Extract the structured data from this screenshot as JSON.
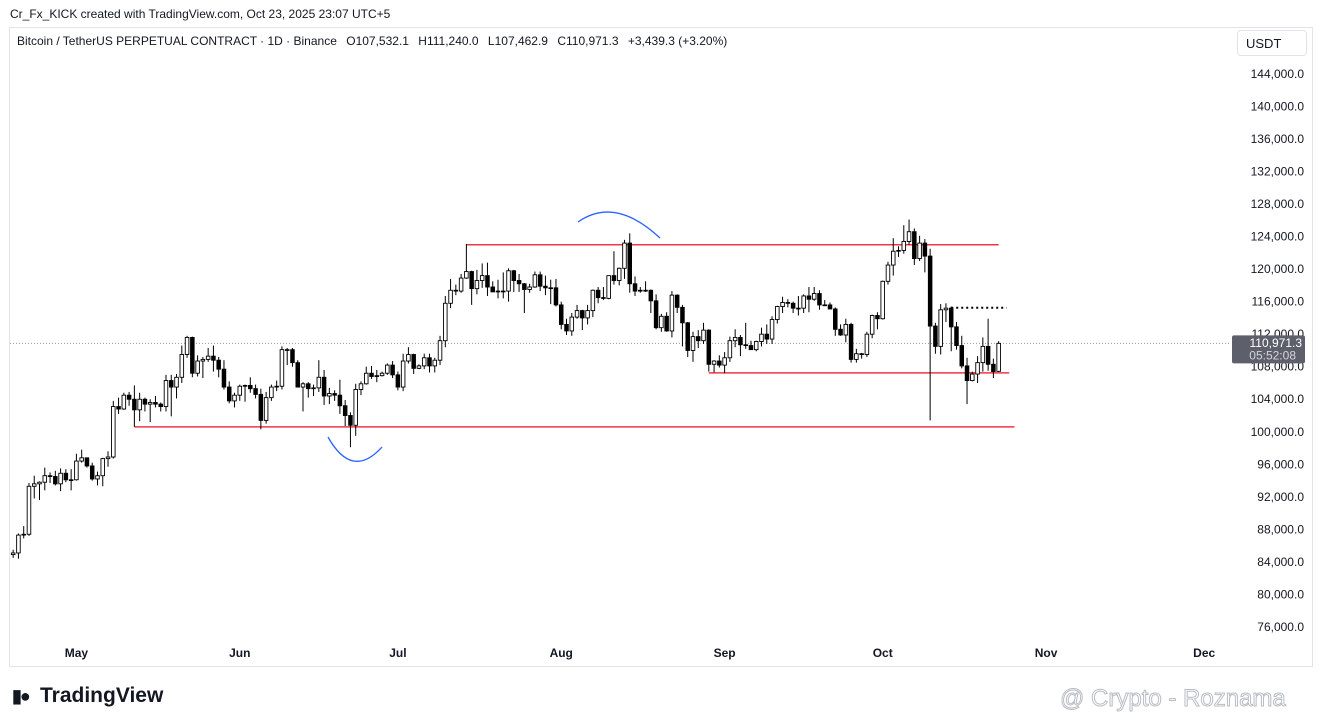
{
  "header": {
    "credit": "Cr_Fx_KICK created with TradingView.com, Oct 23, 2025 23:07 UTC+5",
    "legend": {
      "symbol": "Bitcoin / TetherUS PERPETUAL CONTRACT · 1D · Binance",
      "open": "O107,532.1",
      "high": "H111,240.0",
      "low": "L107,462.9",
      "close": "C110,971.3",
      "change": "+3,439.3 (+3.20%)"
    }
  },
  "currency_button": "USDT",
  "chart_data": {
    "type": "candlestick",
    "up_color": "#ffffff",
    "down_color": "#000000",
    "border_color": "#000000",
    "grid": false,
    "xlim": [
      -0.6,
      230.9
    ],
    "xticks": [
      {
        "value": 12,
        "label": "May"
      },
      {
        "value": 43,
        "label": "Jun"
      },
      {
        "value": 73,
        "label": "Jul"
      },
      {
        "value": 104,
        "label": "Aug"
      },
      {
        "value": 135,
        "label": "Sep"
      },
      {
        "value": 165,
        "label": "Oct"
      },
      {
        "value": 196,
        "label": "Nov"
      },
      {
        "value": 226,
        "label": "Dec"
      }
    ],
    "ylim": [
      74500,
      149500
    ],
    "yticks": [
      {
        "value": 76000,
        "label": "76,000.0"
      },
      {
        "value": 80000,
        "label": "80,000.0"
      },
      {
        "value": 84000,
        "label": "84,000.0"
      },
      {
        "value": 88000,
        "label": "88,000.0"
      },
      {
        "value": 92000,
        "label": "92,000.0"
      },
      {
        "value": 96000,
        "label": "96,000.0"
      },
      {
        "value": 100000,
        "label": "100,000.0"
      },
      {
        "value": 104000,
        "label": "104,000.0"
      },
      {
        "value": 108000,
        "label": "108,000.0"
      },
      {
        "value": 112000,
        "label": "112,000.0"
      },
      {
        "value": 116000,
        "label": "116,000.0"
      },
      {
        "value": 120000,
        "label": "120,000.0"
      },
      {
        "value": 124000,
        "label": "124,000.0"
      },
      {
        "value": 128000,
        "label": "128,000.0"
      },
      {
        "value": 132000,
        "label": "132,000.0"
      },
      {
        "value": 136000,
        "label": "136,000.0"
      },
      {
        "value": 140000,
        "label": "140,000.0"
      },
      {
        "value": 144000,
        "label": "144,000.0"
      }
    ],
    "last_price": {
      "value": 110971.3,
      "label": "110,971.3",
      "countdown": "05:52:08",
      "color": "#5d606b"
    },
    "levels": [
      {
        "value": 123100,
        "from": 86,
        "to": 187,
        "color": "#f23645",
        "style": "solid"
      },
      {
        "value": 100700,
        "from": 23,
        "to": 190,
        "color": "#f23645",
        "style": "solid"
      },
      {
        "value": 107350,
        "from": 132,
        "to": 189,
        "color": "#f23645",
        "style": "solid"
      },
      {
        "value": 115350,
        "from": 178,
        "to": 188.5,
        "color": "#000000",
        "style": "dotted"
      }
    ],
    "candles": [
      [
        85000,
        85600,
        84600,
        85200
      ],
      [
        85200,
        87600,
        84500,
        87400
      ],
      [
        87400,
        88500,
        87000,
        87500
      ],
      [
        87500,
        93800,
        87300,
        93400
      ],
      [
        93400,
        94700,
        91900,
        93700
      ],
      [
        93700,
        94000,
        91700,
        93900
      ],
      [
        93900,
        95700,
        92900,
        94700
      ],
      [
        94700,
        95100,
        93800,
        94600
      ],
      [
        94600,
        95300,
        93500,
        93700
      ],
      [
        93700,
        95600,
        92800,
        95000
      ],
      [
        95000,
        95500,
        93900,
        94200
      ],
      [
        94200,
        95500,
        92900,
        94200
      ],
      [
        94200,
        97400,
        94100,
        96500
      ],
      [
        96500,
        97900,
        96300,
        96900
      ],
      [
        96900,
        96900,
        95700,
        95900
      ],
      [
        95900,
        96300,
        94100,
        94300
      ],
      [
        94300,
        95200,
        93500,
        94700
      ],
      [
        94700,
        96900,
        93400,
        96800
      ],
      [
        96800,
        97700,
        95800,
        97000
      ],
      [
        97000,
        103900,
        96800,
        103200
      ],
      [
        103200,
        104300,
        102300,
        102900
      ],
      [
        102900,
        104900,
        102800,
        104600
      ],
      [
        104600,
        105000,
        103300,
        104100
      ],
      [
        104100,
        105800,
        100700,
        102800
      ],
      [
        102800,
        104900,
        101400,
        104100
      ],
      [
        104100,
        104300,
        102600,
        103500
      ],
      [
        103500,
        104100,
        101300,
        103700
      ],
      [
        103700,
        104500,
        103100,
        103500
      ],
      [
        103500,
        103700,
        102600,
        103200
      ],
      [
        103200,
        107100,
        102600,
        106400
      ],
      [
        106400,
        107100,
        102000,
        105600
      ],
      [
        105600,
        107200,
        104200,
        106800
      ],
      [
        106800,
        110700,
        106100,
        109600
      ],
      [
        109600,
        111900,
        109200,
        111700
      ],
      [
        111700,
        111800,
        106800,
        107300
      ],
      [
        107300,
        109500,
        106900,
        108800
      ],
      [
        108800,
        109300,
        106700,
        109000
      ],
      [
        109000,
        110400,
        108700,
        109400
      ],
      [
        109400,
        110700,
        107500,
        108900
      ],
      [
        108900,
        109300,
        106800,
        107800
      ],
      [
        107800,
        108900,
        105300,
        105600
      ],
      [
        105600,
        106300,
        103600,
        103900
      ],
      [
        103900,
        104900,
        103100,
        104600
      ],
      [
        104600,
        105900,
        103900,
        105700
      ],
      [
        105700,
        105900,
        103800,
        105800
      ],
      [
        105800,
        106800,
        104900,
        105400
      ],
      [
        105400,
        105900,
        104200,
        104700
      ],
      [
        104700,
        105400,
        100400,
        101500
      ],
      [
        101500,
        105000,
        101100,
        104300
      ],
      [
        104300,
        105900,
        103900,
        105600
      ],
      [
        105600,
        106400,
        105100,
        105700
      ],
      [
        105700,
        110600,
        105300,
        110200
      ],
      [
        110200,
        110400,
        108300,
        110200
      ],
      [
        110200,
        110400,
        108100,
        108600
      ],
      [
        108600,
        108900,
        105600,
        105600
      ],
      [
        105600,
        106200,
        102600,
        106000
      ],
      [
        106000,
        106200,
        104300,
        105400
      ],
      [
        105400,
        105900,
        104500,
        105500
      ],
      [
        105500,
        108900,
        105000,
        106800
      ],
      [
        106800,
        107700,
        103400,
        104500
      ],
      [
        104500,
        105500,
        103500,
        104800
      ],
      [
        104800,
        105200,
        103900,
        104600
      ],
      [
        104600,
        106500,
        102300,
        103300
      ],
      [
        103300,
        104000,
        100800,
        102100
      ],
      [
        102100,
        102500,
        98200,
        100900
      ],
      [
        100900,
        106000,
        99600,
        105300
      ],
      [
        105300,
        106300,
        104600,
        106000
      ],
      [
        106000,
        108100,
        105900,
        107300
      ],
      [
        107300,
        108200,
        106600,
        106900
      ],
      [
        106900,
        107700,
        106200,
        107000
      ],
      [
        107000,
        107500,
        106900,
        107300
      ],
      [
        107300,
        108500,
        107100,
        108300
      ],
      [
        108300,
        108800,
        106700,
        107100
      ],
      [
        107100,
        107500,
        105200,
        105600
      ],
      [
        105600,
        109700,
        105100,
        108800
      ],
      [
        108800,
        110500,
        108500,
        109600
      ],
      [
        109600,
        109700,
        107200,
        107900
      ],
      [
        107900,
        108400,
        107800,
        108200
      ],
      [
        108200,
        109700,
        107800,
        109200
      ],
      [
        109200,
        109700,
        107400,
        108200
      ],
      [
        108200,
        109200,
        107400,
        108900
      ],
      [
        108900,
        111900,
        108300,
        111300
      ],
      [
        111300,
        116800,
        110500,
        115900
      ],
      [
        115900,
        118900,
        115300,
        117500
      ],
      [
        117500,
        118200,
        116900,
        117400
      ],
      [
        117400,
        119500,
        117200,
        119000
      ],
      [
        119000,
        123200,
        118900,
        119800
      ],
      [
        119800,
        119900,
        115700,
        117700
      ],
      [
        117700,
        120000,
        117000,
        118700
      ],
      [
        118700,
        120800,
        117800,
        119300
      ],
      [
        119300,
        120900,
        116800,
        117900
      ],
      [
        117900,
        118600,
        117300,
        117300
      ],
      [
        117300,
        118800,
        116500,
        117400
      ],
      [
        117400,
        119700,
        116500,
        117400
      ],
      [
        117400,
        120200,
        116100,
        119900
      ],
      [
        119900,
        120000,
        117300,
        118700
      ],
      [
        118700,
        119500,
        117300,
        118300
      ],
      [
        118300,
        118400,
        114700,
        117600
      ],
      [
        117600,
        118300,
        117200,
        117900
      ],
      [
        117900,
        119800,
        117800,
        119400
      ],
      [
        119400,
        119800,
        117400,
        118000
      ],
      [
        118000,
        119300,
        116900,
        117800
      ],
      [
        117800,
        118800,
        115800,
        117800
      ],
      [
        117800,
        118900,
        115500,
        115700
      ],
      [
        115700,
        116100,
        112700,
        113300
      ],
      [
        113300,
        114000,
        112000,
        112500
      ],
      [
        112500,
        114700,
        111900,
        114200
      ],
      [
        114200,
        115700,
        114000,
        115000
      ],
      [
        115000,
        115100,
        112600,
        114100
      ],
      [
        114100,
        115700,
        113300,
        115000
      ],
      [
        115000,
        117600,
        114200,
        117500
      ],
      [
        117500,
        117900,
        115900,
        116600
      ],
      [
        116600,
        117900,
        116300,
        116500
      ],
      [
        116500,
        119300,
        116400,
        119300
      ],
      [
        119300,
        122300,
        118200,
        118700
      ],
      [
        118700,
        120300,
        118100,
        120200
      ],
      [
        120200,
        123700,
        118900,
        123300
      ],
      [
        123300,
        124500,
        117200,
        118300
      ],
      [
        118300,
        119200,
        116800,
        117400
      ],
      [
        117400,
        117900,
        117200,
        117500
      ],
      [
        117500,
        118600,
        117300,
        117500
      ],
      [
        117500,
        117600,
        114700,
        116200
      ],
      [
        116200,
        117000,
        112700,
        112900
      ],
      [
        112900,
        114600,
        112400,
        114300
      ],
      [
        114300,
        114800,
        112400,
        112500
      ],
      [
        112500,
        117400,
        111700,
        116900
      ],
      [
        116900,
        117000,
        114700,
        115400
      ],
      [
        115400,
        115700,
        110600,
        113500
      ],
      [
        113500,
        113600,
        109300,
        110100
      ],
      [
        110100,
        112400,
        108700,
        111800
      ],
      [
        111800,
        112600,
        110400,
        111300
      ],
      [
        111300,
        113500,
        110900,
        112600
      ],
      [
        112600,
        112700,
        107500,
        108400
      ],
      [
        108400,
        108900,
        107400,
        108800
      ],
      [
        108800,
        109500,
        108000,
        108300
      ],
      [
        108300,
        109900,
        107300,
        109200
      ],
      [
        109200,
        111800,
        108700,
        111300
      ],
      [
        111300,
        112700,
        110500,
        111700
      ],
      [
        111700,
        112000,
        109400,
        110800
      ],
      [
        110800,
        113500,
        110300,
        110700
      ],
      [
        110700,
        111300,
        110200,
        110200
      ],
      [
        110200,
        111300,
        110000,
        111200
      ],
      [
        111200,
        112900,
        110600,
        112100
      ],
      [
        112100,
        113300,
        110900,
        111500
      ],
      [
        111500,
        114300,
        110900,
        113900
      ],
      [
        113900,
        115600,
        113400,
        115500
      ],
      [
        115500,
        116700,
        114700,
        116000
      ],
      [
        116000,
        116400,
        115400,
        115900
      ],
      [
        115900,
        116100,
        114700,
        115300
      ],
      [
        115300,
        116800,
        114400,
        115300
      ],
      [
        115300,
        117000,
        114700,
        116800
      ],
      [
        116800,
        117900,
        114800,
        116400
      ],
      [
        116400,
        117900,
        116200,
        117100
      ],
      [
        117100,
        117500,
        115100,
        115700
      ],
      [
        115700,
        116300,
        115600,
        115700
      ],
      [
        115700,
        116000,
        115200,
        115200
      ],
      [
        115200,
        115400,
        111900,
        112700
      ],
      [
        112700,
        113300,
        111900,
        112000
      ],
      [
        112000,
        114000,
        111100,
        113300
      ],
      [
        113300,
        113500,
        108600,
        109000
      ],
      [
        109000,
        110300,
        108600,
        109700
      ],
      [
        109700,
        109800,
        109100,
        109600
      ],
      [
        109600,
        112400,
        109300,
        112100
      ],
      [
        112100,
        114500,
        111600,
        114400
      ],
      [
        114400,
        114800,
        112700,
        114000
      ],
      [
        114000,
        118700,
        113900,
        118600
      ],
      [
        118600,
        121000,
        118200,
        120600
      ],
      [
        120600,
        123900,
        119300,
        122300
      ],
      [
        122300,
        122900,
        121600,
        122400
      ],
      [
        122400,
        125500,
        122000,
        123500
      ],
      [
        123500,
        126200,
        123100,
        124700
      ],
      [
        124700,
        125100,
        120600,
        121400
      ],
      [
        121400,
        124200,
        121100,
        123300
      ],
      [
        123300,
        123800,
        119700,
        121700
      ],
      [
        121700,
        122600,
        101500,
        113100
      ],
      [
        113100,
        113500,
        109700,
        110600
      ],
      [
        110600,
        115800,
        109600,
        115100
      ],
      [
        115100,
        115900,
        113600,
        115300
      ],
      [
        115300,
        115500,
        110000,
        113000
      ],
      [
        113000,
        113600,
        110200,
        110700
      ],
      [
        110700,
        111900,
        107900,
        108200
      ],
      [
        108200,
        109200,
        103500,
        106400
      ],
      [
        106400,
        107500,
        106300,
        107200
      ],
      [
        107200,
        109400,
        106100,
        108600
      ],
      [
        108600,
        111700,
        107500,
        110600
      ],
      [
        110600,
        114000,
        107600,
        108400
      ],
      [
        108400,
        109100,
        106700,
        107500
      ],
      [
        107532.1,
        111240,
        107462.9,
        110971.3
      ]
    ]
  },
  "footer": {
    "logo": "TradingView",
    "watermark": "@ Crypto - Roznama"
  }
}
